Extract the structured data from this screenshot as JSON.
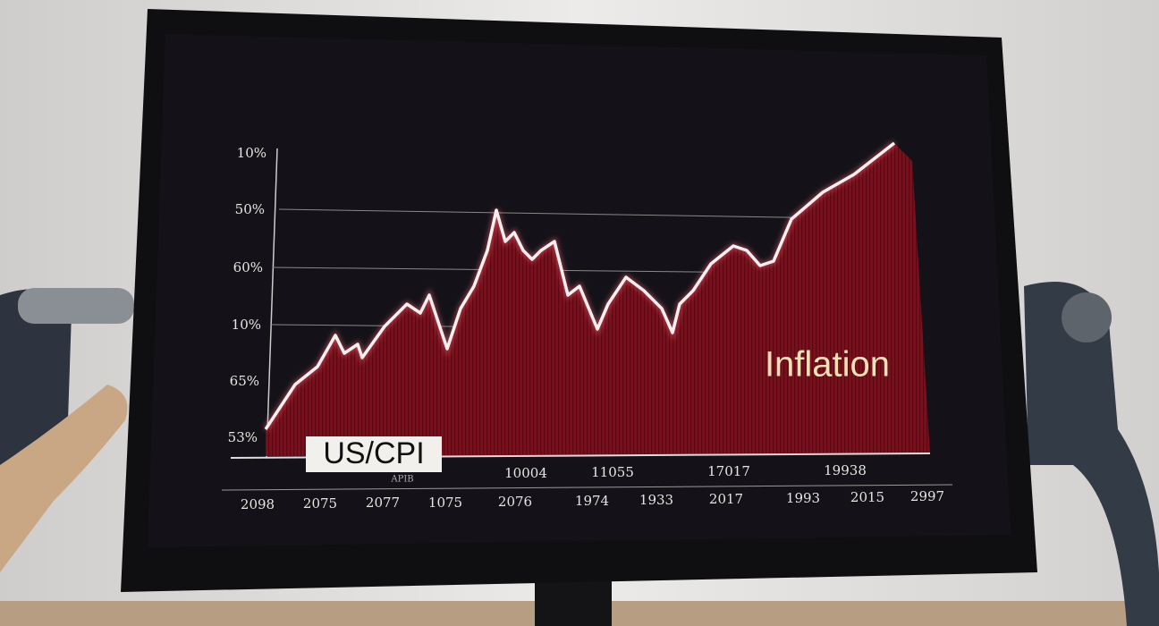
{
  "screen": {
    "y_labels": [
      "10%",
      "50%",
      "60%",
      "10%",
      "65%",
      "53%"
    ],
    "title": "US/CPI",
    "subtitle": "APIB",
    "annotation": "Inflation",
    "upper_labels": [
      "10004",
      "11055",
      "17017",
      "19938"
    ],
    "lower_labels": [
      "2098",
      "2075",
      "2077",
      "1075",
      "2076",
      "1974",
      "1933",
      "2017",
      "1993",
      "2015",
      "2997"
    ]
  }
}
